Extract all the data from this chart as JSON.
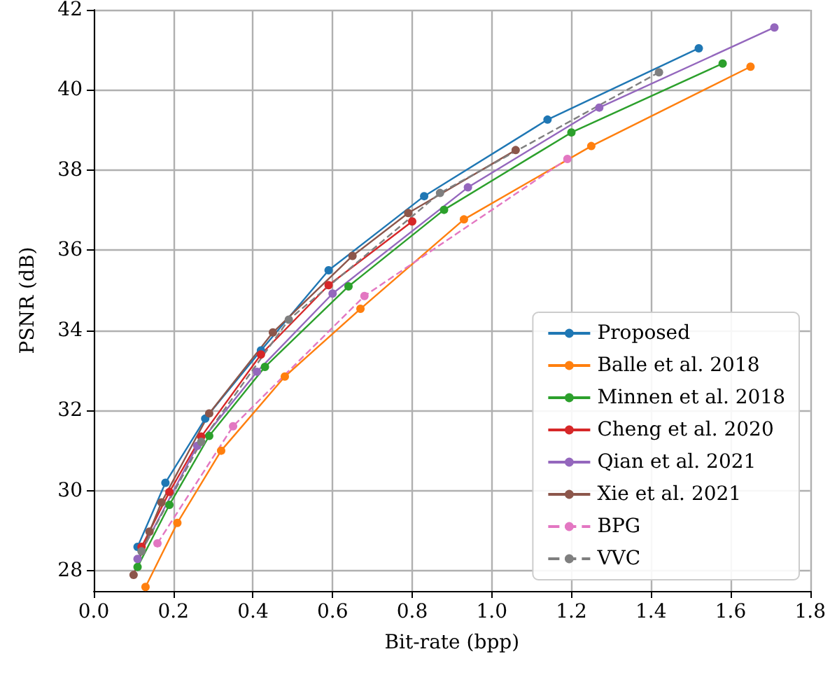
{
  "chart_data": {
    "type": "line",
    "xlabel": "Bit-rate (bpp)",
    "ylabel": "PSNR (dB)",
    "xlim": [
      0,
      1.8
    ],
    "xticks": [
      {
        "value": 0,
        "label": "0.0"
      },
      {
        "value": 0.2,
        "label": "0.2"
      },
      {
        "value": 0.4,
        "label": "0.4"
      },
      {
        "value": 0.6,
        "label": "0.6"
      },
      {
        "value": 0.8,
        "label": "0.8"
      },
      {
        "value": 1,
        "label": "1.0"
      },
      {
        "value": 1.2,
        "label": "1.2"
      },
      {
        "value": 1.4,
        "label": "1.4"
      },
      {
        "value": 1.6,
        "label": "1.6"
      },
      {
        "value": 1.8,
        "label": "1.8"
      }
    ],
    "ylim": [
      27.5,
      42
    ],
    "yticks": [
      28,
      30,
      32,
      34,
      36,
      38,
      40,
      42
    ],
    "grid": true,
    "legend": "bottom right",
    "marker": "circle",
    "series": [
      {
        "name": "Proposed",
        "color": "#1f77b4",
        "line_style": "solid",
        "x": [
          0.11,
          0.18,
          0.28,
          0.42,
          0.59,
          0.83,
          1.14,
          1.52
        ],
        "values": [
          28.6,
          30.2,
          31.8,
          33.5,
          35.5,
          37.35,
          39.26,
          41.04
        ]
      },
      {
        "name": "Balle et al. 2018",
        "color": "#ff7f0e",
        "line_style": "solid",
        "x": [
          0.13,
          0.21,
          0.32,
          0.48,
          0.67,
          0.93,
          1.25,
          1.65
        ],
        "values": [
          27.6,
          29.2,
          31.0,
          32.85,
          34.54,
          36.77,
          38.6,
          40.58
        ]
      },
      {
        "name": "Minnen et al. 2018",
        "color": "#2ca02c",
        "line_style": "solid",
        "x": [
          0.11,
          0.19,
          0.29,
          0.43,
          0.64,
          0.88,
          1.2,
          1.58
        ],
        "values": [
          28.1,
          29.65,
          31.37,
          33.09,
          35.1,
          37.01,
          38.94,
          40.66
        ]
      },
      {
        "name": "Cheng et al. 2020",
        "color": "#d62728",
        "line_style": "solid",
        "x": [
          0.12,
          0.19,
          0.27,
          0.42,
          0.59,
          0.8
        ],
        "values": [
          28.6,
          29.97,
          31.35,
          33.4,
          35.13,
          36.72
        ]
      },
      {
        "name": "Qian et al. 2021",
        "color": "#9467bd",
        "line_style": "solid",
        "x": [
          0.11,
          0.26,
          0.41,
          0.6,
          0.94,
          1.27,
          1.71
        ],
        "values": [
          28.3,
          31.12,
          32.97,
          34.92,
          37.57,
          39.56,
          41.56
        ]
      },
      {
        "name": "Xie et al. 2021",
        "color": "#8c564b",
        "line_style": "solid",
        "x": [
          0.1,
          0.14,
          0.17,
          0.29,
          0.45,
          0.65,
          0.79,
          1.06
        ],
        "values": [
          27.9,
          28.98,
          29.71,
          31.93,
          33.95,
          35.86,
          36.93,
          38.5
        ]
      },
      {
        "name": "BPG",
        "color": "#e377c2",
        "line_style": "dashed",
        "x": [
          0.16,
          0.35,
          0.68,
          1.19
        ],
        "values": [
          28.69,
          31.61,
          34.86,
          38.28
        ]
      },
      {
        "name": "VVC",
        "color": "#7f7f7f",
        "line_style": "dashed",
        "x": [
          0.12,
          0.27,
          0.49,
          0.87,
          1.42
        ],
        "values": [
          28.49,
          31.22,
          34.27,
          37.43,
          40.44
        ]
      }
    ]
  }
}
